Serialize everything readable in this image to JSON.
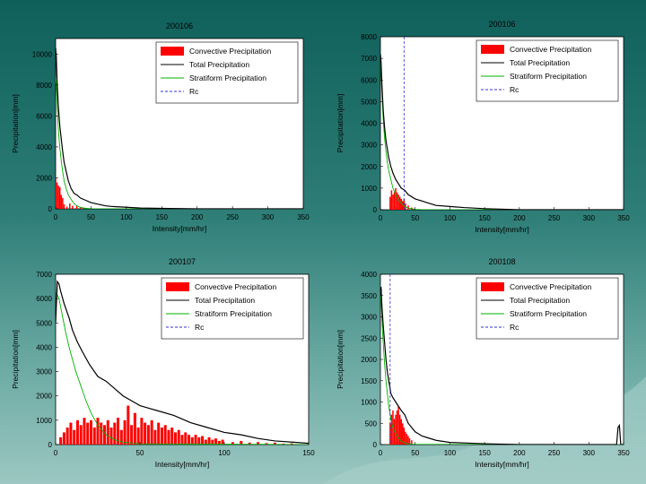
{
  "legend_labels": {
    "convective": "Convective Precipitation",
    "total": "Total Precipitation",
    "stratiform": "Stratiform Precipitation",
    "rc": "Rc"
  },
  "colors": {
    "convective": "#ff0000",
    "total": "#000000",
    "stratiform": "#00b000",
    "rc": "#3333cc"
  },
  "chart_data": [
    {
      "type": "bar",
      "title": "200106",
      "xlabel": "Intensity[mm/hr]",
      "ylabel": "Precipitation[mm]",
      "xlim": [
        0,
        350
      ],
      "ylim": [
        0,
        11000
      ],
      "xticks": [
        0,
        50,
        100,
        150,
        200,
        250,
        300,
        350
      ],
      "yticks": [
        0,
        2000,
        4000,
        6000,
        8000,
        10000
      ],
      "legend_position": "top-right",
      "grid": false,
      "series": [
        {
          "name": "Convective Precipitation",
          "kind": "bar",
          "x": [
            0,
            2,
            4,
            6,
            8,
            10,
            12,
            16,
            20,
            24,
            30,
            35,
            40
          ],
          "values": [
            2000,
            1700,
            1500,
            1400,
            900,
            700,
            300,
            150,
            350,
            200,
            200,
            100,
            80
          ]
        },
        {
          "name": "Total Precipitation",
          "kind": "line",
          "x": [
            0,
            1,
            2,
            4,
            6,
            8,
            10,
            12,
            15,
            18,
            22,
            26,
            30,
            35,
            40,
            50,
            60,
            70,
            80,
            100,
            120,
            150,
            200,
            250,
            300,
            350
          ],
          "values": [
            10400,
            9800,
            8300,
            6500,
            5300,
            4500,
            3700,
            3000,
            2400,
            1800,
            1300,
            1000,
            900,
            700,
            600,
            400,
            300,
            200,
            150,
            100,
            50,
            30,
            0,
            0,
            0,
            0
          ]
        },
        {
          "name": "Stratiform Precipitation",
          "kind": "line",
          "x": [
            0,
            1,
            2,
            4,
            6,
            8,
            10,
            12,
            15,
            18,
            22,
            26,
            30,
            35,
            40,
            50,
            60,
            350
          ],
          "values": [
            8400,
            8000,
            6800,
            5000,
            3900,
            3100,
            2400,
            1800,
            1300,
            900,
            600,
            350,
            200,
            100,
            50,
            10,
            0,
            0
          ]
        }
      ]
    },
    {
      "type": "bar",
      "title": "200106",
      "xlabel": "Intensity[mm/hr]",
      "ylabel": "Precipitation[mm]",
      "xlim": [
        0,
        350
      ],
      "ylim": [
        0,
        8000
      ],
      "xticks": [
        0,
        50,
        100,
        150,
        200,
        250,
        300,
        350
      ],
      "yticks": [
        0,
        1000,
        2000,
        3000,
        4000,
        5000,
        6000,
        7000,
        8000
      ],
      "legend_position": "top-right",
      "grid": false,
      "rc_x": 34,
      "series": [
        {
          "name": "Convective Precipitation",
          "kind": "bar",
          "x": [
            14,
            16,
            18,
            20,
            22,
            24,
            26,
            28,
            30,
            32,
            34,
            36,
            40,
            45
          ],
          "values": [
            600,
            900,
            700,
            800,
            1000,
            800,
            700,
            600,
            500,
            400,
            500,
            300,
            200,
            100
          ]
        },
        {
          "name": "Total Precipitation",
          "kind": "line",
          "x": [
            0,
            1,
            2,
            4,
            6,
            8,
            10,
            12,
            15,
            18,
            22,
            26,
            30,
            35,
            40,
            50,
            60,
            70,
            80,
            100,
            120,
            150,
            200,
            250,
            300,
            350
          ],
          "values": [
            7200,
            6800,
            5900,
            4600,
            3800,
            3200,
            2800,
            2400,
            2000,
            1700,
            1400,
            1200,
            1000,
            900,
            700,
            500,
            400,
            300,
            200,
            150,
            100,
            50,
            0,
            0,
            0,
            0
          ]
        },
        {
          "name": "Stratiform Precipitation",
          "kind": "line",
          "x": [
            0,
            1,
            2,
            4,
            6,
            8,
            10,
            12,
            15,
            18,
            22,
            26,
            30,
            35,
            40,
            50,
            60,
            350
          ],
          "values": [
            6800,
            6400,
            5500,
            4200,
            3300,
            2700,
            2200,
            1800,
            1400,
            1000,
            700,
            450,
            300,
            150,
            80,
            20,
            0,
            0
          ]
        }
      ]
    },
    {
      "type": "bar",
      "title": "200107",
      "xlabel": "Intensity[mm/hr]",
      "ylabel": "Precipitation[mm]",
      "xlim": [
        0,
        150
      ],
      "ylim": [
        0,
        7000
      ],
      "xticks": [
        0,
        50,
        100,
        150
      ],
      "yticks": [
        0,
        1000,
        2000,
        3000,
        4000,
        5000,
        6000,
        7000
      ],
      "legend_position": "top-right",
      "grid": false,
      "series": [
        {
          "name": "Convective Precipitation",
          "kind": "bar",
          "x": [
            3,
            5,
            7,
            9,
            11,
            13,
            15,
            17,
            19,
            21,
            23,
            25,
            27,
            29,
            31,
            33,
            35,
            37,
            39,
            41,
            43,
            45,
            47,
            49,
            51,
            53,
            55,
            57,
            59,
            61,
            63,
            65,
            67,
            69,
            71,
            73,
            75,
            77,
            79,
            81,
            83,
            85,
            87,
            89,
            91,
            93,
            95,
            97,
            99,
            105,
            110,
            115,
            120,
            125,
            130,
            135,
            140
          ],
          "values": [
            300,
            500,
            700,
            900,
            600,
            1000,
            800,
            1100,
            900,
            1000,
            700,
            1100,
            900,
            800,
            1000,
            700,
            900,
            1100,
            600,
            1000,
            1600,
            800,
            1300,
            700,
            1100,
            900,
            800,
            1000,
            600,
            900,
            700,
            800,
            600,
            700,
            500,
            600,
            400,
            500,
            400,
            300,
            400,
            300,
            350,
            200,
            300,
            200,
            250,
            150,
            200,
            100,
            150,
            80,
            100,
            60,
            80,
            40,
            50
          ]
        },
        {
          "name": "Total Precipitation",
          "kind": "line",
          "x": [
            0,
            1,
            2,
            3,
            5,
            8,
            10,
            13,
            16,
            20,
            25,
            30,
            35,
            40,
            45,
            50,
            55,
            60,
            70,
            80,
            90,
            100,
            110,
            120,
            130,
            140,
            150
          ],
          "values": [
            5000,
            6700,
            6600,
            6300,
            5800,
            5200,
            4700,
            4200,
            3800,
            3300,
            2800,
            2600,
            2300,
            2000,
            1800,
            1600,
            1500,
            1400,
            1200,
            900,
            700,
            500,
            400,
            250,
            150,
            100,
            50
          ]
        },
        {
          "name": "Stratiform Precipitation",
          "kind": "line",
          "x": [
            0,
            2,
            4,
            6,
            8,
            10,
            12,
            15,
            18,
            21,
            25,
            30,
            35,
            40,
            50,
            150
          ],
          "values": [
            6300,
            6000,
            5300,
            4600,
            4000,
            3500,
            3000,
            2400,
            1800,
            1300,
            800,
            400,
            200,
            100,
            30,
            0
          ]
        }
      ]
    },
    {
      "type": "bar",
      "title": "200108",
      "xlabel": "Intensity[mm/hr]",
      "ylabel": "Precipitation[mm]",
      "xlim": [
        0,
        350
      ],
      "ylim": [
        0,
        4000
      ],
      "xticks": [
        0,
        50,
        100,
        150,
        200,
        250,
        300,
        350
      ],
      "yticks": [
        0,
        500,
        1000,
        1500,
        2000,
        2500,
        3000,
        3500,
        4000
      ],
      "legend_position": "top-right",
      "grid": false,
      "rc_x": 14,
      "series": [
        {
          "name": "Convective Precipitation",
          "kind": "bar",
          "x": [
            14,
            16,
            18,
            20,
            22,
            24,
            26,
            28,
            30,
            32,
            34,
            36,
            38,
            40,
            42,
            45
          ],
          "values": [
            500,
            700,
            800,
            600,
            700,
            800,
            900,
            700,
            600,
            500,
            400,
            300,
            250,
            200,
            150,
            100
          ]
        },
        {
          "name": "Total Precipitation",
          "kind": "line",
          "x": [
            0,
            1,
            2,
            4,
            6,
            8,
            10,
            12,
            15,
            18,
            22,
            26,
            30,
            35,
            40,
            50,
            60,
            70,
            80,
            100,
            150,
            200,
            250,
            300,
            340,
            342,
            344,
            346,
            350
          ],
          "values": [
            3600,
            3700,
            3300,
            2800,
            2400,
            2000,
            1700,
            1500,
            1200,
            1100,
            1000,
            900,
            800,
            700,
            500,
            300,
            200,
            150,
            100,
            50,
            20,
            0,
            0,
            0,
            0,
            400,
            450,
            0,
            0
          ]
        },
        {
          "name": "Stratiform Precipitation",
          "kind": "line",
          "x": [
            0,
            1,
            2,
            4,
            6,
            8,
            10,
            12,
            15,
            18,
            22,
            26,
            30,
            35,
            40,
            50,
            350
          ],
          "values": [
            3500,
            3400,
            3000,
            2400,
            1900,
            1500,
            1200,
            900,
            600,
            400,
            250,
            150,
            80,
            40,
            20,
            5,
            0
          ]
        }
      ]
    }
  ]
}
